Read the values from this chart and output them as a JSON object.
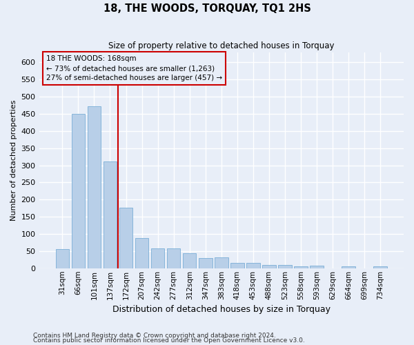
{
  "title": "18, THE WOODS, TORQUAY, TQ1 2HS",
  "subtitle": "Size of property relative to detached houses in Torquay",
  "xlabel": "Distribution of detached houses by size in Torquay",
  "ylabel": "Number of detached properties",
  "footnote1": "Contains HM Land Registry data © Crown copyright and database right 2024.",
  "footnote2": "Contains public sector information licensed under the Open Government Licence v3.0.",
  "bar_color": "#b8cfe8",
  "bar_edge_color": "#7aaed6",
  "background_color": "#e8eef8",
  "grid_color": "#ffffff",
  "property_line_color": "#cc0000",
  "annotation_line1": "18 THE WOODS: 168sqm",
  "annotation_line2": "← 73% of detached houses are smaller (1,263)",
  "annotation_line3": "27% of semi-detached houses are larger (457) →",
  "annotation_box_color": "#cc0000",
  "categories": [
    "31sqm",
    "66sqm",
    "101sqm",
    "137sqm",
    "172sqm",
    "207sqm",
    "242sqm",
    "277sqm",
    "312sqm",
    "347sqm",
    "383sqm",
    "418sqm",
    "453sqm",
    "488sqm",
    "523sqm",
    "558sqm",
    "593sqm",
    "629sqm",
    "664sqm",
    "699sqm",
    "734sqm"
  ],
  "values": [
    55,
    450,
    472,
    312,
    177,
    88,
    58,
    57,
    43,
    30,
    32,
    15,
    15,
    10,
    10,
    6,
    8,
    0,
    5,
    0,
    5
  ],
  "ylim": [
    0,
    630
  ],
  "yticks": [
    0,
    50,
    100,
    150,
    200,
    250,
    300,
    350,
    400,
    450,
    500,
    550,
    600
  ],
  "property_bar_index": 4,
  "figsize": [
    6.0,
    5.0
  ],
  "dpi": 100
}
